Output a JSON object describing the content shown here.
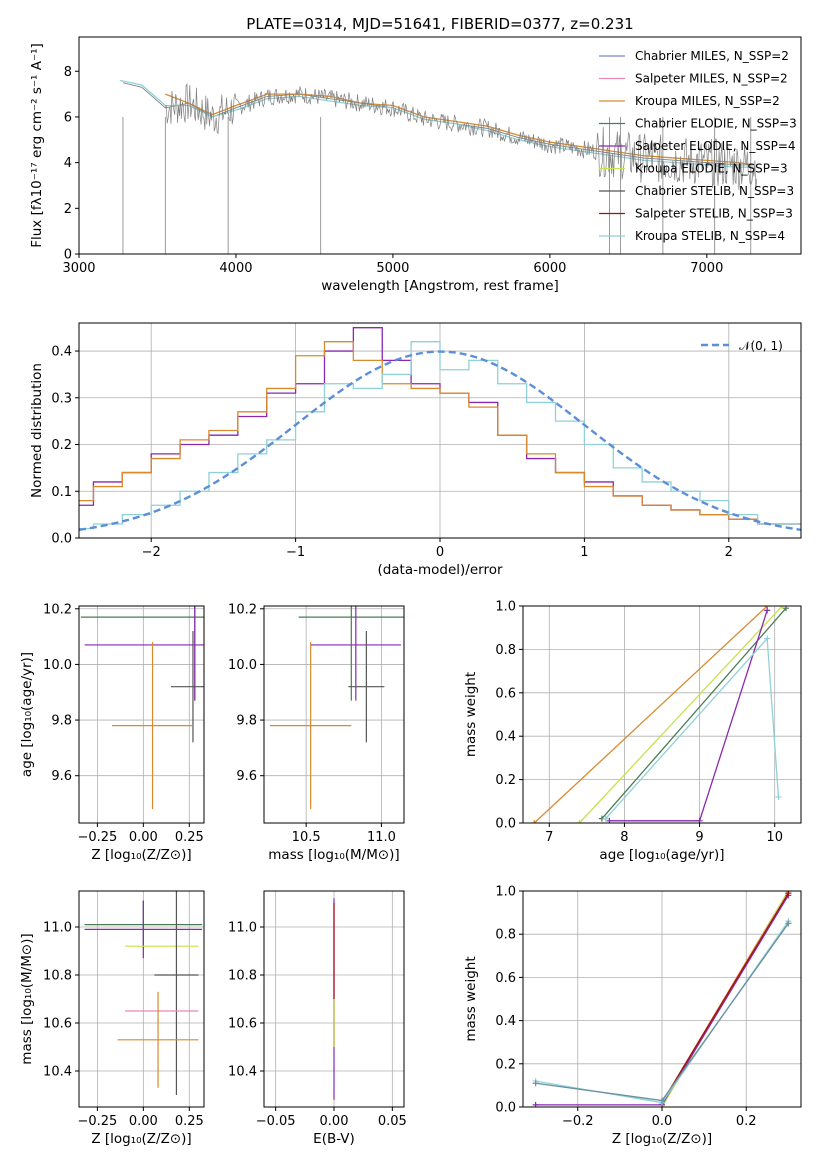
{
  "title": "PLATE=0314, MJD=51641, FIBERID=0377, z=0.231",
  "chart_data": [
    {
      "type": "line",
      "xlabel": "wavelength [Angstrom, rest frame]",
      "ylabel": "Flux [fλ10⁻¹⁷ erg cm⁻² s⁻¹ A⁻¹]",
      "xlim": [
        3000,
        7600
      ],
      "ylim": [
        0,
        9.5
      ],
      "xticks": [
        3000,
        4000,
        5000,
        6000,
        7000
      ],
      "yticks": [
        0,
        2,
        4,
        6,
        8
      ],
      "grid": false,
      "legend_position": "top-right",
      "legend": [
        {
          "label": "Chabrier MILES, N_SSP=2",
          "color": "#7b86c7"
        },
        {
          "label": "Salpeter MILES, N_SSP=2",
          "color": "#e88ab5"
        },
        {
          "label": "Kroupa MILES, N_SSP=2",
          "color": "#d98a2e"
        },
        {
          "label": "Chabrier ELODIE, N_SSP=3",
          "color": "#4a7d52"
        },
        {
          "label": "Salpeter ELODIE, N_SSP=4",
          "color": "#8a28b0"
        },
        {
          "label": "Kroupa ELODIE, N_SSP=3",
          "color": "#c5e34a"
        },
        {
          "label": "Chabrier STELIB, N_SSP=3",
          "color": "#555555"
        },
        {
          "label": "Salpeter STELIB, N_SSP=3",
          "color": "#a01010"
        },
        {
          "label": "Kroupa STELIB, N_SSP=4",
          "color": "#8fd1d6"
        }
      ],
      "series": [
        {
          "name": "data",
          "color": "#808080",
          "x": [
            3280,
            3400,
            3550,
            3700,
            3850,
            4000,
            4200,
            4400,
            4600,
            4800,
            5000,
            5200,
            5400,
            5600,
            5800,
            6000,
            6200,
            6400,
            6600,
            6800,
            7000,
            7200,
            7300
          ],
          "y": [
            7.5,
            7.3,
            6.4,
            6.6,
            6.0,
            6.4,
            6.9,
            7.0,
            6.8,
            6.6,
            6.4,
            5.9,
            5.7,
            5.5,
            5.1,
            4.8,
            4.6,
            4.4,
            4.2,
            4.1,
            4.0,
            3.9,
            3.9
          ]
        },
        {
          "name": "model",
          "color": "#d98a2e",
          "x": [
            3550,
            3700,
            3850,
            4000,
            4200,
            4400,
            4600,
            4800,
            5000,
            5200,
            5400,
            5600,
            5800,
            6000,
            6200,
            6400,
            6600,
            6800,
            7000,
            7200,
            7300
          ],
          "y": [
            7.0,
            6.6,
            6.1,
            6.5,
            7.0,
            7.0,
            6.9,
            6.6,
            6.5,
            6.0,
            5.8,
            5.6,
            5.2,
            4.9,
            4.7,
            4.5,
            4.3,
            4.2,
            4.1,
            4.0,
            3.9
          ]
        },
        {
          "name": "model-blue",
          "color": "#8fd1d6",
          "x": [
            3260,
            3400,
            3550,
            3700,
            3850,
            4000,
            4200,
            4400,
            4600,
            4800,
            5000,
            5200,
            5400,
            5600,
            5800,
            6000,
            6200,
            6400,
            6600,
            6800,
            7000,
            7200,
            7300
          ],
          "y": [
            7.6,
            7.4,
            6.5,
            6.5,
            6.0,
            6.3,
            6.8,
            6.9,
            6.7,
            6.5,
            6.4,
            5.9,
            5.7,
            5.4,
            5.0,
            4.7,
            4.5,
            4.3,
            4.1,
            4.0,
            3.9,
            3.8,
            3.8
          ]
        }
      ]
    },
    {
      "type": "line",
      "xlabel": "(data-model)/error",
      "ylabel": "Normed distribution",
      "xlim": [
        -2.5,
        2.5
      ],
      "ylim": [
        0,
        0.46
      ],
      "xticks": [
        -2,
        -1,
        0,
        1,
        2
      ],
      "yticks": [
        0.0,
        0.1,
        0.2,
        0.3,
        0.4
      ],
      "grid": true,
      "legend_position": "top-right",
      "gaussian_label": "𝒩(0, 1)",
      "gaussian_color": "#5b8fd9",
      "series": [
        {
          "name": "Salpeter ELODIE",
          "color": "#8a28b0",
          "x": [
            -2.5,
            -2.3,
            -2.1,
            -1.9,
            -1.7,
            -1.5,
            -1.3,
            -1.1,
            -0.9,
            -0.7,
            -0.5,
            -0.3,
            -0.1,
            0.1,
            0.3,
            0.5,
            0.7,
            0.9,
            1.1,
            1.3,
            1.5,
            1.7,
            1.9,
            2.1,
            2.3,
            2.5
          ],
          "y": [
            0.07,
            0.12,
            0.14,
            0.18,
            0.2,
            0.22,
            0.26,
            0.31,
            0.33,
            0.4,
            0.45,
            0.38,
            0.33,
            0.31,
            0.29,
            0.22,
            0.17,
            0.14,
            0.12,
            0.09,
            0.07,
            0.06,
            0.05,
            0.04,
            0.03,
            0.03
          ]
        },
        {
          "name": "Kroupa MILES",
          "color": "#d98a2e",
          "x": [
            -2.5,
            -2.3,
            -2.1,
            -1.9,
            -1.7,
            -1.5,
            -1.3,
            -1.1,
            -0.9,
            -0.7,
            -0.5,
            -0.3,
            -0.1,
            0.1,
            0.3,
            0.5,
            0.7,
            0.9,
            1.1,
            1.3,
            1.5,
            1.7,
            1.9,
            2.1,
            2.3,
            2.5
          ],
          "y": [
            0.08,
            0.11,
            0.14,
            0.17,
            0.21,
            0.23,
            0.27,
            0.32,
            0.39,
            0.42,
            0.38,
            0.33,
            0.32,
            0.31,
            0.28,
            0.22,
            0.18,
            0.14,
            0.11,
            0.09,
            0.07,
            0.06,
            0.05,
            0.04,
            0.03,
            0.03
          ]
        },
        {
          "name": "Kroupa STELIB",
          "color": "#8fd1d6",
          "x": [
            -2.5,
            -2.3,
            -2.1,
            -1.9,
            -1.7,
            -1.5,
            -1.3,
            -1.1,
            -0.9,
            -0.7,
            -0.5,
            -0.3,
            -0.1,
            0.1,
            0.3,
            0.5,
            0.7,
            0.9,
            1.1,
            1.3,
            1.5,
            1.7,
            1.9,
            2.1,
            2.3,
            2.5
          ],
          "y": [
            0.02,
            0.03,
            0.05,
            0.07,
            0.1,
            0.14,
            0.18,
            0.21,
            0.27,
            0.33,
            0.32,
            0.35,
            0.42,
            0.36,
            0.38,
            0.33,
            0.29,
            0.25,
            0.2,
            0.15,
            0.12,
            0.1,
            0.08,
            0.05,
            0.03,
            0.03
          ]
        }
      ]
    },
    {
      "type": "scatter",
      "xlabel": "Z [log₁₀(Z/Z⊙)]",
      "ylabel": "age  [log₁₀(age/yr)]",
      "xlim": [
        -0.35,
        0.33
      ],
      "ylim": [
        9.43,
        10.21
      ],
      "xticks": [
        -0.25,
        0.0,
        0.25
      ],
      "xtick_labels": [
        "−0.25",
        "0.00",
        "0.25"
      ],
      "yticks": [
        9.6,
        9.8,
        10.0,
        10.2
      ],
      "grid": true,
      "points": [
        {
          "x": 0.28,
          "y": 10.17,
          "xerr": 0.62,
          "yerr": 0.3,
          "color": "#4a7d52"
        },
        {
          "x": 0.28,
          "y": 10.07,
          "xerr": 0.6,
          "yerr": 0.2,
          "color": "#8a28b0"
        },
        {
          "x": 0.27,
          "y": 9.92,
          "xerr": 0.12,
          "yerr": 0.2,
          "color": "#555555"
        },
        {
          "x": 0.05,
          "y": 9.78,
          "xerr": 0.22,
          "yerr": 0.3,
          "color": "#d98a2e"
        }
      ]
    },
    {
      "type": "scatter",
      "xlabel": "mass [log₁₀(M/M⊙)]",
      "ylabel": "",
      "xlim": [
        10.22,
        11.15
      ],
      "ylim": [
        9.43,
        10.21
      ],
      "xticks": [
        10.5,
        11.0
      ],
      "yticks": [
        9.6,
        9.8,
        10.0,
        10.2
      ],
      "grid": true,
      "points": [
        {
          "x": 10.8,
          "y": 10.17,
          "xerr": 0.35,
          "yerr": 0.3,
          "color": "#4a7d52"
        },
        {
          "x": 10.83,
          "y": 10.07,
          "xerr": 0.3,
          "yerr": 0.2,
          "color": "#8a28b0"
        },
        {
          "x": 10.9,
          "y": 9.92,
          "xerr": 0.12,
          "yerr": 0.2,
          "color": "#555555"
        },
        {
          "x": 10.53,
          "y": 9.78,
          "xerr": 0.27,
          "yerr": 0.3,
          "color": "#d98a2e"
        }
      ]
    },
    {
      "type": "line",
      "xlabel": "age  [log₁₀(age/yr)]",
      "ylabel": "mass weight",
      "xlim": [
        6.65,
        10.35
      ],
      "ylim": [
        0,
        1
      ],
      "xticks": [
        7,
        8,
        9,
        10
      ],
      "yticks": [
        0.0,
        0.2,
        0.4,
        0.6,
        0.8,
        1.0
      ],
      "grid": true,
      "series": [
        {
          "name": "Kroupa MILES",
          "color": "#d98a2e",
          "x": [
            6.8,
            9.9
          ],
          "y": [
            0.0,
            1.0
          ]
        },
        {
          "name": "Kroupa ELODIE",
          "color": "#c5e34a",
          "x": [
            7.4,
            10.1
          ],
          "y": [
            0.0,
            1.0
          ]
        },
        {
          "name": "Chabrier ELODIE",
          "color": "#4a7d52",
          "x": [
            7.7,
            10.15
          ],
          "y": [
            0.02,
            0.99
          ]
        },
        {
          "name": "Salpeter ELODIE",
          "color": "#8a28b0",
          "x": [
            7.8,
            9.0,
            9.9
          ],
          "y": [
            0.01,
            0.01,
            0.98
          ]
        },
        {
          "name": "Kroupa STELIB",
          "color": "#8fd1d6",
          "x": [
            7.75,
            9.9,
            10.05
          ],
          "y": [
            0.02,
            0.85,
            0.12
          ]
        }
      ]
    },
    {
      "type": "scatter",
      "xlabel": "Z [log₁₀(Z/Z⊙)]",
      "ylabel": "mass [log₁₀(M/M⊙)]",
      "xlim": [
        -0.35,
        0.33
      ],
      "ylim": [
        10.25,
        11.15
      ],
      "xticks": [
        -0.25,
        0.0,
        0.25
      ],
      "xtick_labels": [
        "−0.25",
        "0.00",
        "0.25"
      ],
      "yticks": [
        10.4,
        10.6,
        10.8,
        11.0
      ],
      "grid": true,
      "points": [
        {
          "x": 0.0,
          "y": 11.01,
          "xerr": 0.32,
          "yerr": 0.1,
          "color": "#4a7d52"
        },
        {
          "x": 0.0,
          "y": 10.99,
          "xerr": 0.32,
          "yerr": 0.12,
          "color": "#8a28b0"
        },
        {
          "x": 0.1,
          "y": 10.92,
          "xerr": 0.2,
          "yerr": 0.0,
          "color": "#c5e34a"
        },
        {
          "x": 0.18,
          "y": 10.8,
          "xerr": 0.12,
          "yerr": 0.5,
          "color": "#555555"
        },
        {
          "x": 0.1,
          "y": 10.65,
          "xerr": 0.2,
          "yerr": 0.0,
          "color": "#e88ab5"
        },
        {
          "x": 0.08,
          "y": 10.53,
          "xerr": 0.22,
          "yerr": 0.2,
          "color": "#d98a2e"
        }
      ]
    },
    {
      "type": "scatter",
      "xlabel": "E(B-V)",
      "ylabel": "",
      "xlim": [
        -0.06,
        0.06
      ],
      "ylim": [
        10.25,
        11.15
      ],
      "xticks": [
        -0.05,
        0.0,
        0.05
      ],
      "xtick_labels": [
        "−0.05",
        "0.00",
        "0.05"
      ],
      "yticks": [
        10.4,
        10.6,
        10.8,
        11.0
      ],
      "grid": true,
      "points": [
        {
          "x": 0.0,
          "y": 10.7,
          "xerr": 0.0,
          "yerr": 0.42,
          "color": "#8a28b0"
        },
        {
          "x": 0.0,
          "y": 10.8,
          "xerr": 0.0,
          "yerr": 0.3,
          "color": "#a01010"
        },
        {
          "x": 0.0,
          "y": 10.6,
          "xerr": 0.0,
          "yerr": 0.1,
          "color": "#c5e34a"
        }
      ]
    },
    {
      "type": "line",
      "xlabel": "Z [log₁₀(Z/Z⊙)]",
      "ylabel": "mass weight",
      "xlim": [
        -0.33,
        0.33
      ],
      "ylim": [
        0,
        1
      ],
      "xticks": [
        -0.2,
        0.0,
        0.2
      ],
      "xtick_labels": [
        "−0.2",
        "0.0",
        "0.2"
      ],
      "yticks": [
        0.0,
        0.2,
        0.4,
        0.6,
        0.8,
        1.0
      ],
      "grid": true,
      "series": [
        {
          "name": "Kroupa MILES",
          "color": "#d98a2e",
          "x": [
            0.0,
            0.3
          ],
          "y": [
            0.02,
            1.0
          ]
        },
        {
          "name": "Kroupa ELODIE",
          "color": "#c5e34a",
          "x": [
            0.0,
            0.3
          ],
          "y": [
            0.0,
            1.0
          ]
        },
        {
          "name": "Salpeter ELODIE",
          "color": "#8a28b0",
          "x": [
            -0.3,
            0.0,
            0.3
          ],
          "y": [
            0.01,
            0.01,
            0.98
          ]
        },
        {
          "name": "Salpeter STELIB",
          "color": "#a01010",
          "x": [
            0.0,
            0.3
          ],
          "y": [
            0.02,
            0.99
          ]
        },
        {
          "name": "Kroupa STELIB",
          "color": "#8fd1d6",
          "x": [
            -0.3,
            0.0,
            0.3
          ],
          "y": [
            0.12,
            0.02,
            0.86
          ]
        },
        {
          "name": "Chabrier STELIB",
          "color": "#6a8fa0",
          "x": [
            -0.3,
            0.0,
            0.3
          ],
          "y": [
            0.11,
            0.03,
            0.85
          ]
        }
      ]
    }
  ]
}
